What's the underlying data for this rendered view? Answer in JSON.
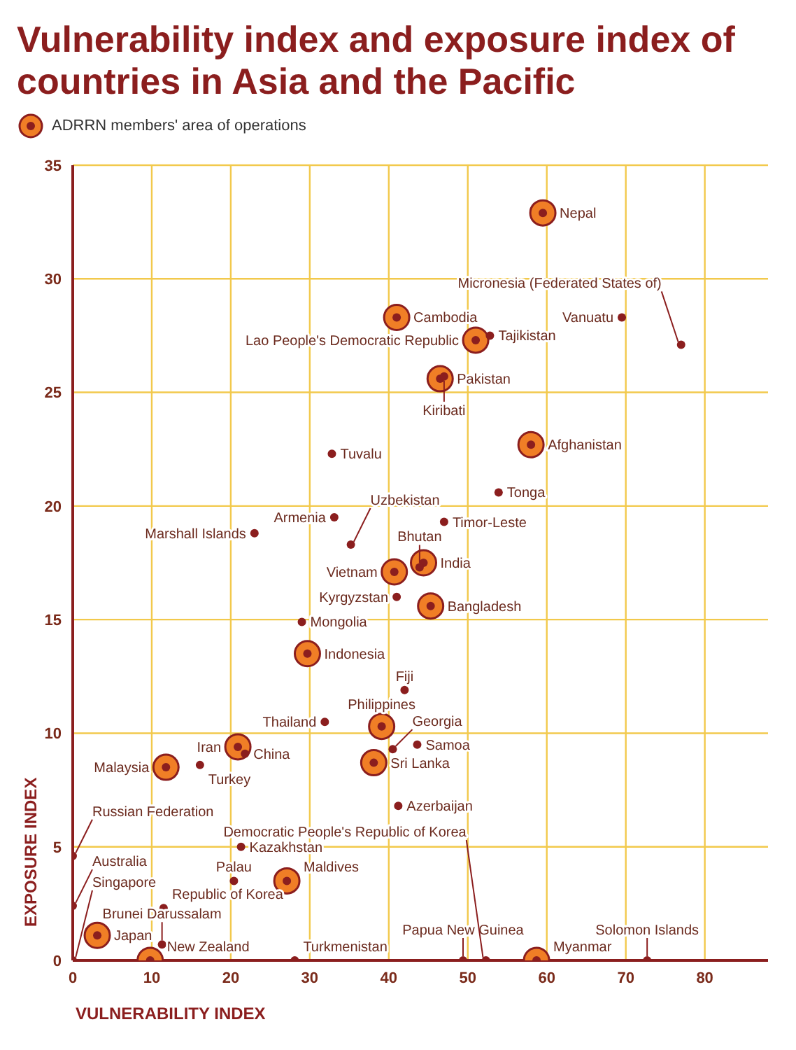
{
  "chart_data": {
    "type": "scatter",
    "title": "Vulnerability index and exposure index of countries in Asia and the Pacific",
    "xlabel": "VULNERABILITY INDEX",
    "ylabel": "EXPOSURE INDEX",
    "xlim": [
      0,
      88
    ],
    "ylim": [
      0,
      35
    ],
    "xticks": [
      0,
      10,
      20,
      30,
      40,
      50,
      60,
      70,
      80
    ],
    "yticks": [
      0,
      5,
      10,
      15,
      20,
      25,
      30,
      35
    ],
    "grid": true,
    "legend": "top left",
    "marker": "circle",
    "series": [
      {
        "name": "ADRRN members' area of operations",
        "color": "#f07e26",
        "x": [
          59.5,
          41,
          51,
          46.5,
          58,
          40.7,
          44.4,
          45.3,
          29.7,
          39.1,
          38.1,
          20.9,
          11.8,
          27.1,
          3.1,
          9.8,
          58.7
        ],
        "values": [
          32.9,
          28.3,
          27.3,
          25.6,
          22.7,
          17.1,
          17.5,
          15.6,
          13.5,
          10.3,
          8.7,
          9.4,
          8.5,
          3.5,
          1.1,
          0,
          0
        ]
      },
      {
        "color": "#8b1e1e",
        "x": [
          52.8,
          69.5,
          77,
          47,
          53.9,
          47,
          32.8,
          33.1,
          23,
          35.2,
          43.9,
          41,
          29,
          42,
          31.9,
          43.6,
          40.5,
          41.2,
          21.8,
          16.1,
          21.3,
          20.4,
          0,
          0,
          11.5,
          11.3,
          0,
          28.1,
          49.4,
          52.3,
          72.7
        ],
        "values": [
          27.5,
          28.3,
          27.1,
          25.7,
          20.6,
          19.3,
          22.3,
          19.5,
          18.8,
          18.3,
          17.3,
          16,
          14.9,
          11.9,
          10.5,
          9.5,
          9.3,
          6.8,
          9.1,
          8.6,
          5,
          3.5,
          4.6,
          2.4,
          2.3,
          0.7,
          0,
          0,
          0,
          0,
          0
        ]
      }
    ],
    "annotations": [
      {
        "text": "Nepal",
        "x": 59.5,
        "y": 32.9
      },
      {
        "text": "Cambodia",
        "x": 41,
        "y": 28.3
      },
      {
        "text": "Lao People's Democratic Republic",
        "x": 51,
        "y": 27.3
      },
      {
        "text": "Tajikistan",
        "x": 52.8,
        "y": 27.5
      },
      {
        "text": "Vanuatu",
        "x": 69.5,
        "y": 28.3
      },
      {
        "text": "Micronesia (Federated States of)",
        "x": 77,
        "y": 27.1
      },
      {
        "text": "Kiribati",
        "x": 47,
        "y": 25.7
      },
      {
        "text": "Pakistan",
        "x": 46.5,
        "y": 25.6
      },
      {
        "text": "Afghanistan",
        "x": 58,
        "y": 22.7
      },
      {
        "text": "Tonga",
        "x": 53.9,
        "y": 20.6
      },
      {
        "text": "Timor-Leste",
        "x": 47,
        "y": 19.3
      },
      {
        "text": "Tuvalu",
        "x": 32.8,
        "y": 22.3
      },
      {
        "text": "Armenia",
        "x": 33.1,
        "y": 19.5
      },
      {
        "text": "Marshall Islands",
        "x": 23,
        "y": 18.8
      },
      {
        "text": "Uzbekistan",
        "x": 35.2,
        "y": 18.3
      },
      {
        "text": "Vietnam",
        "x": 40.7,
        "y": 17.1
      },
      {
        "text": "India",
        "x": 44.4,
        "y": 17.5
      },
      {
        "text": "Bhutan",
        "x": 43.9,
        "y": 17.3
      },
      {
        "text": "Bangladesh",
        "x": 45.3,
        "y": 15.6
      },
      {
        "text": "Kyrgyzstan",
        "x": 41,
        "y": 16
      },
      {
        "text": "Mongolia",
        "x": 29,
        "y": 14.9
      },
      {
        "text": "Indonesia",
        "x": 29.7,
        "y": 13.5
      },
      {
        "text": "Fiji",
        "x": 42,
        "y": 11.9
      },
      {
        "text": "Thailand",
        "x": 31.9,
        "y": 10.5
      },
      {
        "text": "Philippines",
        "x": 39.1,
        "y": 10.3
      },
      {
        "text": "Samoa",
        "x": 43.6,
        "y": 9.5
      },
      {
        "text": "Georgia",
        "x": 40.5,
        "y": 9.3
      },
      {
        "text": "Sri Lanka",
        "x": 38.1,
        "y": 8.7
      },
      {
        "text": "Azerbaijan",
        "x": 41.2,
        "y": 6.8
      },
      {
        "text": "Iran",
        "x": 20.9,
        "y": 9.4
      },
      {
        "text": "China",
        "x": 21.8,
        "y": 9.1
      },
      {
        "text": "Malaysia",
        "x": 11.8,
        "y": 8.5
      },
      {
        "text": "Turkey",
        "x": 16.1,
        "y": 8.6
      },
      {
        "text": "Kazakhstan",
        "x": 21.3,
        "y": 5
      },
      {
        "text": "Palau",
        "x": 20.4,
        "y": 3.5
      },
      {
        "text": "Maldives",
        "x": 27.1,
        "y": 3.5
      },
      {
        "text": "Russian Federation",
        "x": 0,
        "y": 4.6
      },
      {
        "text": "Australia",
        "x": 0,
        "y": 2.4
      },
      {
        "text": "Republic of Korea",
        "x": 11.5,
        "y": 2.3
      },
      {
        "text": "Japan",
        "x": 3.1,
        "y": 1.1
      },
      {
        "text": "New Zealand",
        "x": 9.8,
        "y": 0
      },
      {
        "text": "Brunei Darussalam",
        "x": 11.3,
        "y": 0.7
      },
      {
        "text": "Singapore",
        "x": 0,
        "y": 0
      },
      {
        "text": "Turkmenistan",
        "x": 28.1,
        "y": 0
      },
      {
        "text": "Papua New Guinea",
        "x": 49.4,
        "y": 0
      },
      {
        "text": "Democratic People's Republic of Korea",
        "x": 52.3,
        "y": 0
      },
      {
        "text": "Myanmar",
        "x": 58.7,
        "y": 0
      },
      {
        "text": "Solomon Islands",
        "x": 72.7,
        "y": 0
      }
    ]
  }
}
